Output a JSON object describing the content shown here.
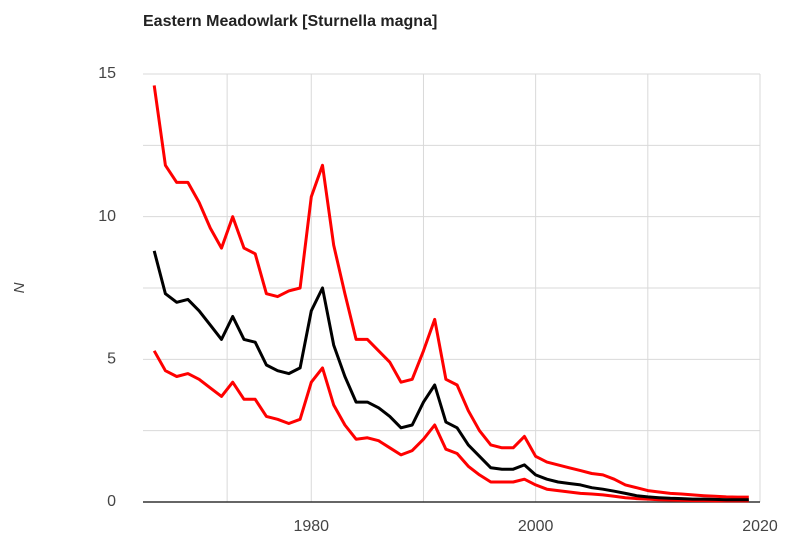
{
  "chart_data": {
    "type": "line",
    "title": "Eastern Meadowlark [Sturnella magna]",
    "y_label": "N",
    "x": [
      1966,
      1967,
      1968,
      1969,
      1970,
      1971,
      1972,
      1973,
      1974,
      1975,
      1976,
      1977,
      1978,
      1979,
      1980,
      1981,
      1982,
      1983,
      1984,
      1985,
      1986,
      1987,
      1988,
      1989,
      1990,
      1991,
      1992,
      1993,
      1994,
      1995,
      1996,
      1997,
      1998,
      1999,
      2000,
      2001,
      2002,
      2003,
      2004,
      2005,
      2006,
      2007,
      2008,
      2009,
      2010,
      2011,
      2012,
      2013,
      2014,
      2015,
      2016,
      2017,
      2018,
      2019
    ],
    "series": [
      {
        "color": "#ff0000",
        "values": [
          14.6,
          11.8,
          11.2,
          11.2,
          10.5,
          9.6,
          8.9,
          10.0,
          8.9,
          8.7,
          7.3,
          7.2,
          7.4,
          7.5,
          10.7,
          11.8,
          9.0,
          7.3,
          5.7,
          5.7,
          5.3,
          4.9,
          4.2,
          4.3,
          5.3,
          6.4,
          4.3,
          4.1,
          3.2,
          2.5,
          2.0,
          1.9,
          1.9,
          2.3,
          1.6,
          1.4,
          1.3,
          1.2,
          1.1,
          1.0,
          0.95,
          0.8,
          0.6,
          0.5,
          0.4,
          0.35,
          0.3,
          0.28,
          0.25,
          0.22,
          0.2,
          0.18,
          0.17,
          0.17
        ]
      },
      {
        "color": "#ff0000",
        "values": [
          5.3,
          4.6,
          4.4,
          4.5,
          4.3,
          4.0,
          3.7,
          4.2,
          3.6,
          3.6,
          3.0,
          2.9,
          2.75,
          2.9,
          4.2,
          4.7,
          3.4,
          2.7,
          2.2,
          2.25,
          2.15,
          1.9,
          1.65,
          1.8,
          2.2,
          2.7,
          1.85,
          1.7,
          1.25,
          0.95,
          0.7,
          0.7,
          0.7,
          0.8,
          0.6,
          0.45,
          0.4,
          0.35,
          0.3,
          0.28,
          0.25,
          0.2,
          0.15,
          0.12,
          0.1,
          0.08,
          0.07,
          0.06,
          0.05,
          0.05,
          0.04,
          0.04,
          0.04,
          0.04
        ]
      },
      {
        "color": "#000000",
        "values": [
          8.8,
          7.3,
          7.0,
          7.1,
          6.7,
          6.2,
          5.7,
          6.5,
          5.7,
          5.6,
          4.8,
          4.6,
          4.5,
          4.7,
          6.7,
          7.5,
          5.5,
          4.4,
          3.5,
          3.5,
          3.3,
          3.0,
          2.6,
          2.7,
          3.5,
          4.1,
          2.8,
          2.6,
          2.0,
          1.6,
          1.2,
          1.15,
          1.15,
          1.3,
          0.95,
          0.8,
          0.7,
          0.65,
          0.6,
          0.5,
          0.45,
          0.38,
          0.3,
          0.22,
          0.18,
          0.15,
          0.13,
          0.12,
          0.1,
          0.1,
          0.09,
          0.08,
          0.08,
          0.08
        ]
      }
    ],
    "xlim": [
      1965,
      2020
    ],
    "xticks": [
      1980,
      2000,
      2020
    ],
    "ylim": [
      0,
      15
    ],
    "yticks": [
      0,
      5,
      10,
      15
    ],
    "grid": true,
    "minor_grid": true
  }
}
